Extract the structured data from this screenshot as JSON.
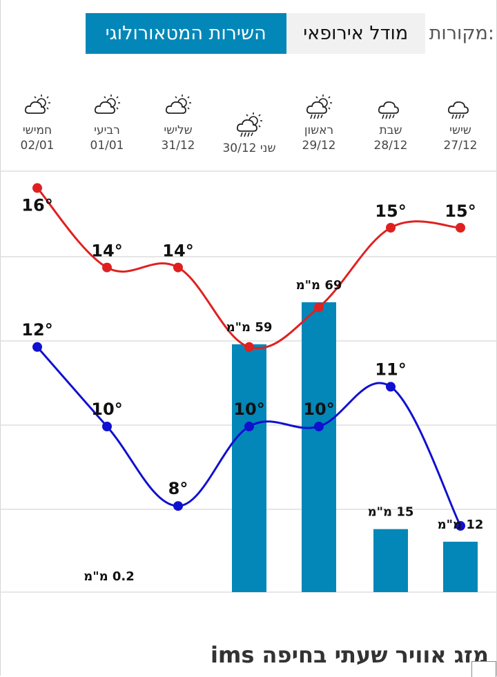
{
  "sources": {
    "label": "מקורות:",
    "options": [
      "מודל אירופאי",
      "השירות המטאורולוגי"
    ],
    "selected": "השירות המטאורולוגי"
  },
  "days": [
    {
      "name": "שישי",
      "date": "27/12",
      "icon": "rain-cloud-icon"
    },
    {
      "name": "שבת",
      "date": "28/12",
      "icon": "rain-cloud-icon"
    },
    {
      "name": "ראשון",
      "date": "29/12",
      "icon": "sun-rain-cloud-icon"
    },
    {
      "name": "שני",
      "date": "30/12",
      "icon": "sun-rain-cloud-icon",
      "selected": true
    },
    {
      "name": "שלישי",
      "date": "31/12",
      "icon": "sun-cloud-icon"
    },
    {
      "name": "רביעי",
      "date": "01/01",
      "icon": "sun-cloud-icon"
    },
    {
      "name": "חמישי",
      "date": "02/01",
      "icon": "sun-cloud-icon"
    }
  ],
  "chart_data": {
    "type": "line",
    "categories": [
      "27/12",
      "28/12",
      "29/12",
      "30/12",
      "31/12",
      "01/01",
      "02/01"
    ],
    "series": [
      {
        "key": "max",
        "color": "#e02020",
        "values": [
          15,
          15,
          13,
          12,
          14,
          14,
          16
        ],
        "labels": [
          "15°",
          "15°",
          "",
          "",
          "14°",
          "14°",
          "16°"
        ]
      },
      {
        "key": "min",
        "color": "#1010d0",
        "values": [
          7.5,
          11,
          10,
          10,
          8,
          10,
          12
        ],
        "labels": [
          "",
          "11°",
          "10°",
          "10°",
          "8°",
          "10°",
          "12°"
        ]
      },
      {
        "key": "rain",
        "type": "bar",
        "color": "#0287b8",
        "unit": "מ\"מ",
        "values": [
          12,
          15,
          69,
          59,
          0.2,
          0,
          0
        ],
        "labels": [
          "12 מ\"מ",
          "15 מ\"מ",
          "69 מ\"מ",
          "59 מ\"מ",
          "0.2 מ\"מ",
          "",
          ""
        ]
      }
    ],
    "grid": true
  },
  "footer": {
    "title": "מזג אוויר שעתי בחיפה ims"
  }
}
